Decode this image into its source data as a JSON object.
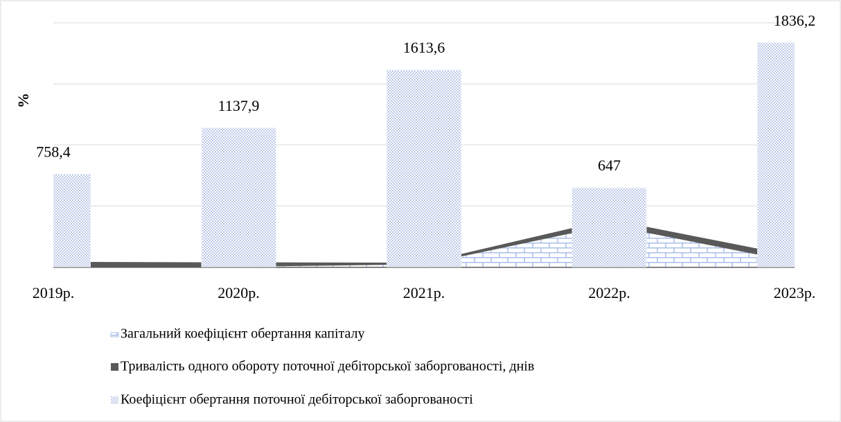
{
  "chart_data": {
    "type": "bar-area",
    "y_label": "%",
    "categories": [
      "2019р.",
      "2020р.",
      "2021р.",
      "2022р.",
      "2023р."
    ],
    "ylim": [
      0,
      2000
    ],
    "yticks": [
      0,
      500,
      1000,
      1500,
      2000
    ],
    "grid": true,
    "legend": "bottom",
    "series": [
      {
        "name": "Загальний коефіцієнт обертання капіталу",
        "kind": "area",
        "color": "#a9bde8",
        "values": [
          0,
          0,
          20,
          340,
          40
        ]
      },
      {
        "name": "Тривалість одного обороту поточної дебіторської заборгованості, днів",
        "kind": "area",
        "color": "#595959",
        "values": [
          32,
          28,
          25,
          380,
          80
        ]
      },
      {
        "name": "Коефіцієнт обертання поточної дебіторської заборгованості",
        "kind": "bar",
        "color": "#8ea3d8",
        "values": [
          758.4,
          1137.9,
          1613.6,
          647,
          1836.2
        ],
        "value_labels": [
          "758,4",
          "1137,9",
          "1613,6",
          "647",
          "1836,2"
        ]
      }
    ]
  }
}
